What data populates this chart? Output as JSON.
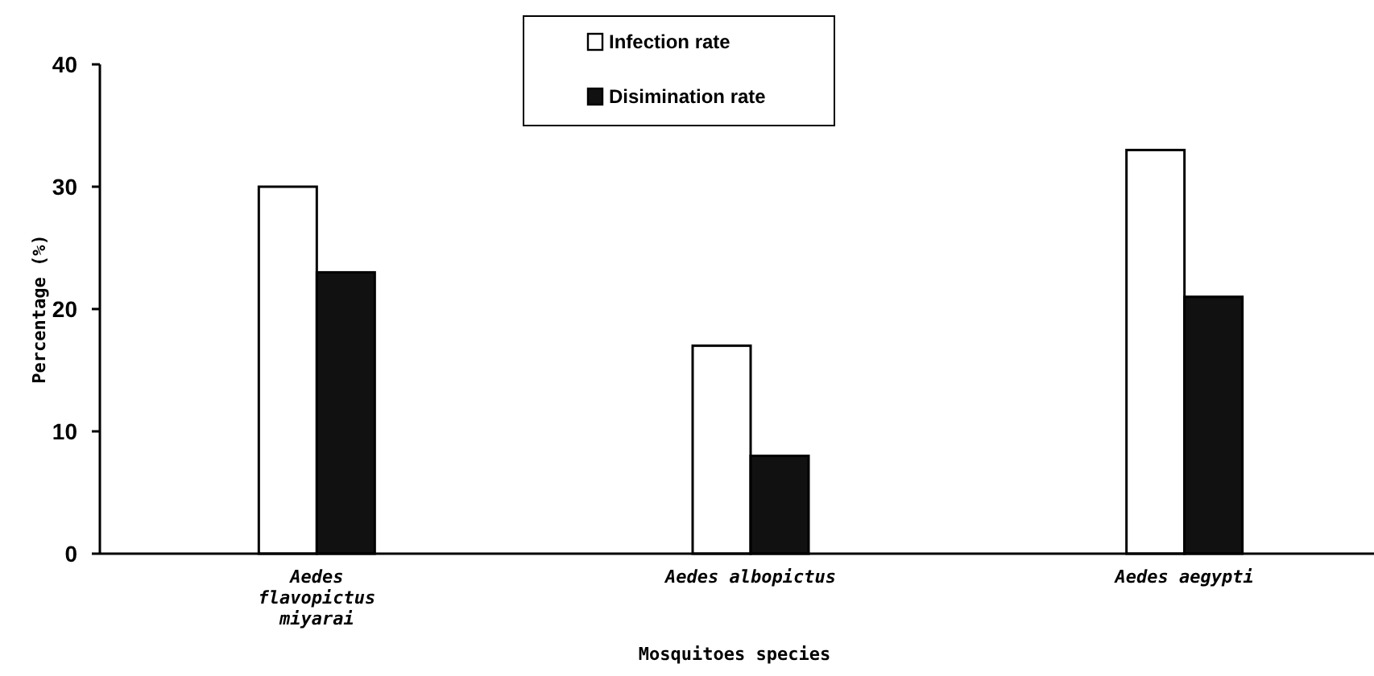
{
  "chart_data": {
    "type": "bar",
    "xlabel": "Mosquitoes species",
    "ylabel": "Percentage (%)",
    "categories": [
      "Aedes flavopictus miyarai",
      "Aedes albopictus",
      "Aedes aegypti"
    ],
    "series": [
      {
        "name": "Infection rate",
        "color": "#ffffff",
        "values": [
          30,
          17,
          33
        ]
      },
      {
        "name": "Disimination rate",
        "color": "#111111",
        "values": [
          23,
          8,
          21
        ]
      }
    ],
    "ylim": [
      0,
      40
    ],
    "yticks": [
      0,
      10,
      20,
      30,
      40
    ],
    "grid": false,
    "legend": "top"
  }
}
